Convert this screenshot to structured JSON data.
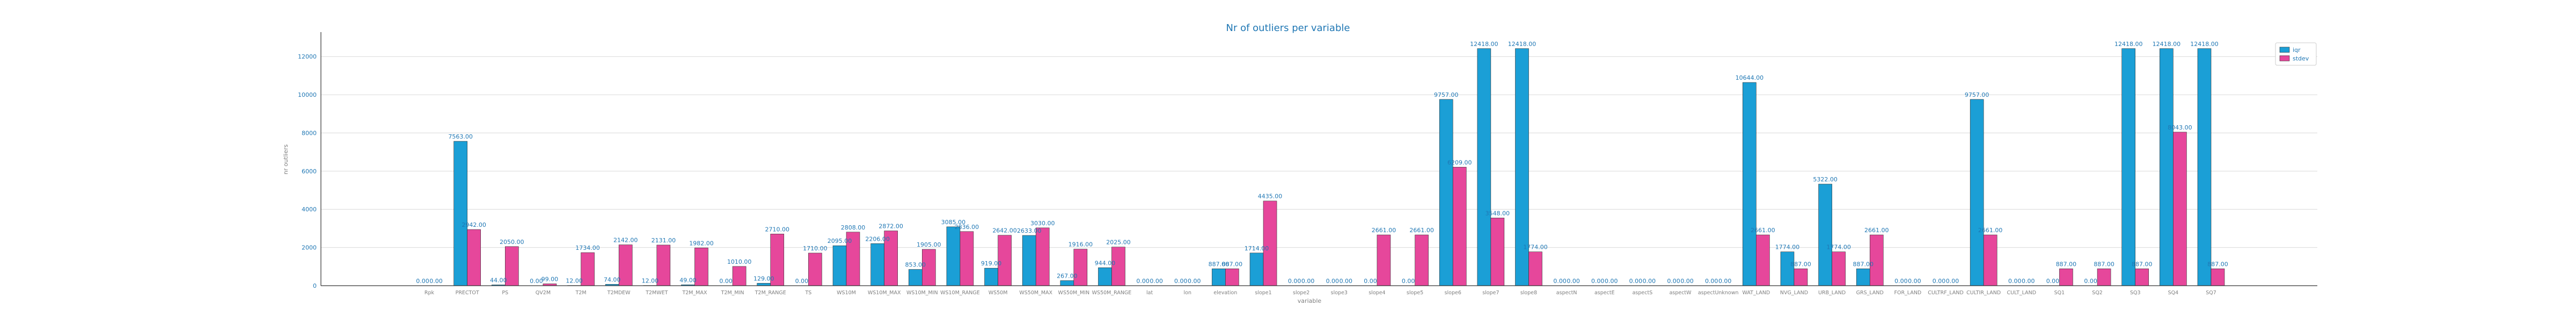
{
  "chart_data": {
    "type": "bar",
    "title": "Nr of outliers per variable",
    "xlabel": "variable",
    "ylabel": "nr outliers",
    "ylim": [
      0,
      13000
    ],
    "yticks": [
      0,
      2000,
      4000,
      6000,
      8000,
      10000,
      12000
    ],
    "grid": true,
    "legend_position": "top-right",
    "colors": {
      "series_0": "#1b9fd6",
      "series_1": "#e6479b"
    },
    "categories": [
      "Rpk",
      "PRECTOT",
      "PS",
      "QV2M",
      "T2M",
      "T2MDEW",
      "T2MWET",
      "T2M_MAX",
      "T2M_MIN",
      "T2M_RANGE",
      "TS",
      "WS10M",
      "WS10M_MAX",
      "WS10M_MIN",
      "WS10M_RANGE",
      "WS50M",
      "WS50M_MAX",
      "WS50M_MIN",
      "WS50M_RANGE",
      "lat",
      "lon",
      "elevation",
      "slope1",
      "slope2",
      "slope3",
      "slope4",
      "slope5",
      "slope6",
      "slope7",
      "slope8",
      "aspectN",
      "aspectE",
      "aspectS",
      "aspectW",
      "aspectUnknown",
      "WAT_LAND",
      "NVG_LAND",
      "URB_LAND",
      "GRS_LAND",
      "FOR_LAND",
      "CULTRF_LAND",
      "CULTIR_LAND",
      "CULT_LAND",
      "SQ1",
      "SQ2",
      "SQ3",
      "SQ4",
      "SQ7"
    ],
    "series": [
      {
        "name": "iqr",
        "values": [
          0,
          7563,
          44,
          0,
          12,
          74,
          12,
          49,
          0,
          129,
          0,
          2095,
          2206,
          853,
          3085,
          919,
          2633,
          267,
          944,
          0,
          0,
          887,
          1714,
          0,
          0,
          0,
          0,
          9757,
          12418,
          12418,
          0,
          0,
          0,
          0,
          0,
          10644,
          1774,
          5322,
          887,
          0,
          0,
          9757,
          0,
          0,
          0,
          12418,
          12418,
          12418
        ]
      },
      {
        "name": "stdev",
        "values": [
          0,
          2942,
          2050,
          99,
          1734,
          2142,
          2131,
          1982,
          1010,
          2710,
          1710,
          2808,
          2872,
          1905,
          2836,
          2642,
          3030,
          1916,
          2025,
          0,
          0,
          887,
          4435,
          0,
          0,
          2661,
          2661,
          6209,
          3548,
          1774,
          0,
          0,
          0,
          0,
          0,
          2661,
          887,
          1774,
          2661,
          0,
          0,
          2661,
          0,
          887,
          887,
          887,
          8043,
          887
        ]
      }
    ],
    "data_labels": {
      "iqr": [
        "0.00",
        "7563.00",
        "44.00",
        "0.00",
        "12.00",
        "74.00",
        "12.00",
        "49.00",
        "0.00",
        "129.00",
        "0.00",
        "2095.00",
        "2206.00",
        "853.00",
        "3085.00",
        "919.00",
        "2633.00",
        "267.00",
        "944.00",
        "0.00",
        "0.00",
        "887.00",
        "1714.00",
        "0.00",
        "0.00",
        "0.00",
        "0.00",
        "9757.00",
        "12418.00",
        "12418.00",
        "0.00",
        "0.00",
        "0.00",
        "0.00",
        "0.00",
        "10644.00",
        "1774.00",
        "5322.00",
        "887.00",
        "0.00",
        "0.00",
        "9757.00",
        "0.00",
        "0.00",
        "0.00",
        "12418.00",
        "12418.00",
        "12418.00"
      ],
      "stdev": [
        "0.00",
        "2942.00",
        "2050.00",
        "99.00",
        "1734.00",
        "2142.00",
        "2131.00",
        "1982.00",
        "1010.00",
        "2710.00",
        "1710.00",
        "2808.00",
        "2872.00",
        "1905.00",
        "2836.00",
        "2642.00",
        "3030.00",
        "1916.00",
        "2025.00",
        "0.00",
        "0.00",
        "887.00",
        "4435.00",
        "0.00",
        "0.00",
        "2661.00",
        "2661.00",
        "6209.00",
        "3548.00",
        "1774.00",
        "0.00",
        "0.00",
        "0.00",
        "0.00",
        "0.00",
        "2661.00",
        "887.00",
        "1774.00",
        "2661.00",
        "0.00",
        "0.00",
        "2661.00",
        "0.00",
        "887.00",
        "887.00",
        "887.00",
        "8043.00",
        "887.00"
      ]
    }
  }
}
